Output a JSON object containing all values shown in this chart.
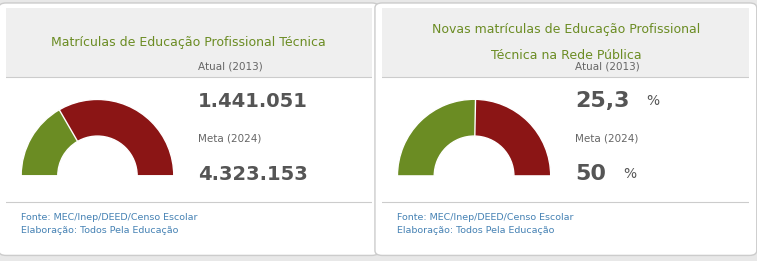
{
  "fig_bg": "#e8e8e8",
  "panel_bg": "#ffffff",
  "panel_border": "#cccccc",
  "header_bg": "#efefef",
  "header_border": "#cccccc",
  "panel1": {
    "title": "Matrículas de Educação Profissional Técnica",
    "atual_label": "Atual (2013)",
    "atual_value": "1.441.051",
    "meta_label": "Meta (2024)",
    "meta_value": "4.323.153",
    "fonte": "Fonte: MEC/Inep/DEED/Censo Escolar\nElaboração: Todos Pela Educação",
    "gauge_atual_pct": 0.333,
    "gauge_color_atual": "#6b8c23",
    "gauge_color_meta": "#8b1515",
    "is_percent": false
  },
  "panel2": {
    "title": "Novas matrículas de Educação Profissional\nTécnica na Rede Pública",
    "atual_label": "Atual (2013)",
    "atual_value": "25,3",
    "atual_suffix": "%",
    "meta_label": "Meta (2024)",
    "meta_value": "50",
    "meta_suffix": "%",
    "fonte": "Fonte: MEC/Inep/DEED/Censo Escolar\nElaboração: Todos Pela Educação",
    "gauge_atual_pct": 0.506,
    "gauge_color_atual": "#6b8c23",
    "gauge_color_meta": "#8b1515",
    "is_percent": true
  },
  "title_color": "#6b8c23",
  "label_color": "#666666",
  "value_color": "#555555",
  "fonte_color": "#4682b4",
  "title_fontsize": 9.0,
  "label_fontsize": 7.5,
  "value1_fontsize": 14,
  "value2_fontsize": 16,
  "fonte_fontsize": 6.8,
  "suffix_fontsize": 10
}
